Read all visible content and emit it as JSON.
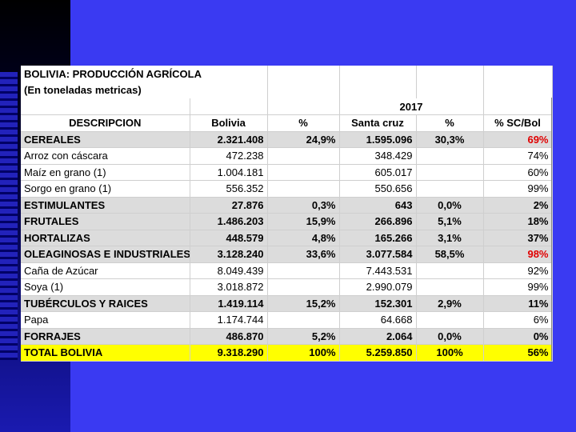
{
  "title": "BOLIVIA: PRODUCCIÓN AGRÍCOLA",
  "subtitle": "(En toneladas metricas)",
  "year": "2017",
  "headers": [
    "DESCRIPCION",
    "Bolivia",
    "%",
    "Santa cruz",
    "%",
    "% SC/Bol"
  ],
  "rows": [
    {
      "desc": "CEREALES",
      "bolivia": "2.321.408",
      "pct": "24,9%",
      "sc": "1.595.096",
      "scpct": "30,3%",
      "scbol": "69%",
      "style": "grey",
      "highlight": "red"
    },
    {
      "desc": "Arroz con cáscara",
      "bolivia": "472.238",
      "pct": "",
      "sc": "348.429",
      "scpct": "",
      "scbol": "74%",
      "style": "",
      "highlight": ""
    },
    {
      "desc": "Maíz en grano (1)",
      "bolivia": "1.004.181",
      "pct": "",
      "sc": "605.017",
      "scpct": "",
      "scbol": "60%",
      "style": "",
      "highlight": ""
    },
    {
      "desc": "Sorgo en grano (1)",
      "bolivia": "556.352",
      "pct": "",
      "sc": "550.656",
      "scpct": "",
      "scbol": "99%",
      "style": "",
      "highlight": ""
    },
    {
      "desc": "ESTIMULANTES",
      "bolivia": "27.876",
      "pct": "0,3%",
      "sc": "643",
      "scpct": "0,0%",
      "scbol": "2%",
      "style": "grey",
      "highlight": ""
    },
    {
      "desc": "FRUTALES",
      "bolivia": "1.486.203",
      "pct": "15,9%",
      "sc": "266.896",
      "scpct": "5,1%",
      "scbol": "18%",
      "style": "grey",
      "highlight": ""
    },
    {
      "desc": "HORTALIZAS",
      "bolivia": "448.579",
      "pct": "4,8%",
      "sc": "165.266",
      "scpct": "3,1%",
      "scbol": "37%",
      "style": "grey",
      "highlight": ""
    },
    {
      "desc": "OLEAGINOSAS E INDUSTRIALES",
      "bolivia": "3.128.240",
      "pct": "33,6%",
      "sc": "3.077.584",
      "scpct": "58,5%",
      "scbol": "98%",
      "style": "grey",
      "highlight": "red"
    },
    {
      "desc": "Caña de Azúcar",
      "bolivia": "8.049.439",
      "pct": "",
      "sc": "7.443.531",
      "scpct": "",
      "scbol": "92%",
      "style": "",
      "highlight": ""
    },
    {
      "desc": "Soya (1)",
      "bolivia": "3.018.872",
      "pct": "",
      "sc": "2.990.079",
      "scpct": "",
      "scbol": "99%",
      "style": "",
      "highlight": ""
    },
    {
      "desc": "TUBÉRCULOS Y RAICES",
      "bolivia": "1.419.114",
      "pct": "15,2%",
      "sc": "152.301",
      "scpct": "2,9%",
      "scbol": "11%",
      "style": "grey",
      "highlight": ""
    },
    {
      "desc": "Papa",
      "bolivia": "1.174.744",
      "pct": "",
      "sc": "64.668",
      "scpct": "",
      "scbol": "6%",
      "style": "",
      "highlight": ""
    },
    {
      "desc": "FORRAJES",
      "bolivia": "486.870",
      "pct": "5,2%",
      "sc": "2.064",
      "scpct": "0,0%",
      "scbol": "0%",
      "style": "grey",
      "highlight": ""
    },
    {
      "desc": "TOTAL BOLIVIA",
      "bolivia": "9.318.290",
      "pct": "100%",
      "sc": "5.259.850",
      "scpct": "100%",
      "scbol": "56%",
      "style": "total",
      "highlight": ""
    }
  ],
  "colors": {
    "background": "#3a3af2",
    "grey_row": "#dcdcdc",
    "total_row": "#ffff00",
    "highlight": "#e00000"
  }
}
